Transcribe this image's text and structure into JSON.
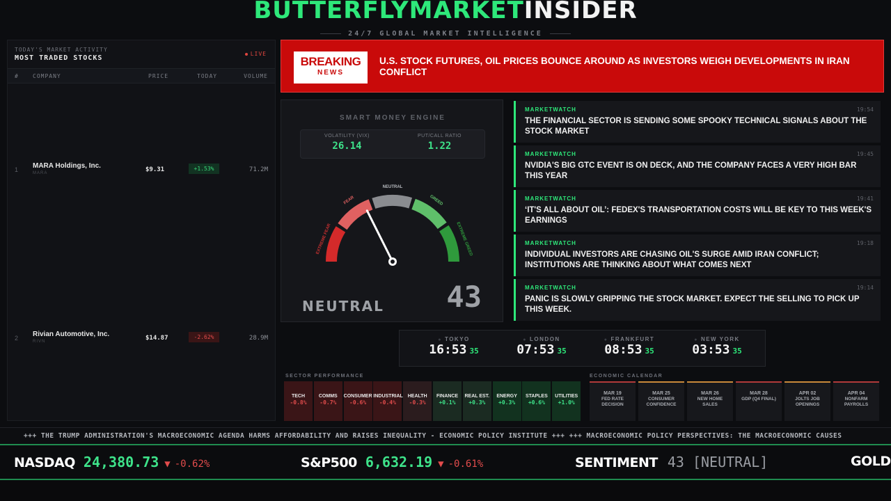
{
  "brand": {
    "part1": "BUTTERFLYMARKET",
    "part2": "INSIDER",
    "tagline": "24/7 GLOBAL MARKET INTELLIGENCE"
  },
  "stocks_panel": {
    "subtitle": "TODAY'S MARKET ACTIVITY",
    "title": "MOST TRADED STOCKS",
    "live": "LIVE",
    "columns": {
      "idx": "#",
      "company": "COMPANY",
      "price": "PRICE",
      "today": "TODAY",
      "volume": "VOLUME"
    },
    "rows": [
      {
        "idx": "1",
        "name": "MARA Holdings, Inc.",
        "ticker": "MARA",
        "price": "$9.31",
        "change": "+1.53%",
        "direction": "up",
        "volume": "71.2M"
      },
      {
        "idx": "2",
        "name": "Rivian Automotive, Inc.",
        "ticker": "RIVN",
        "price": "$14.87",
        "change": "-2.62%",
        "direction": "down",
        "volume": "28.9M"
      }
    ]
  },
  "breaking": {
    "badge_line1": "BREAKING",
    "badge_line2": "NEWS",
    "headline": "U.S. STOCK FUTURES, OIL PRICES BOUNCE AROUND AS INVESTORS WEIGH DEVELOPMENTS IN IRAN CONFLICT"
  },
  "engine": {
    "title": "SMART MONEY ENGINE",
    "vix_label": "VOLATILITY (VIX)",
    "vix_value": "26.14",
    "pcr_label": "PUT/CALL RATIO",
    "pcr_value": "1.22",
    "gauge_labels": {
      "extreme_fear": "EXTREME FEAR",
      "fear": "FEAR",
      "neutral": "NEUTRAL",
      "greed": "GREED",
      "extreme_greed": "EXTREME GREED"
    },
    "state": "NEUTRAL",
    "score": "43",
    "score_value": 43,
    "colors": {
      "extreme_fear": "#d42a2a",
      "fear": "#e06161",
      "neutral": "#8a8c90",
      "greed": "#5fbf6a",
      "extreme_greed": "#2f9a3c"
    }
  },
  "news": [
    {
      "source": "MARKETWATCH",
      "time": "19:54",
      "headline": "THE FINANCIAL SECTOR IS SENDING SOME SPOOKY TECHNICAL SIGNALS ABOUT THE STOCK MARKET"
    },
    {
      "source": "MARKETWATCH",
      "time": "19:45",
      "headline": "NVIDIA'S BIG GTC EVENT IS ON DECK, AND THE COMPANY FACES A VERY HIGH BAR THIS YEAR"
    },
    {
      "source": "MARKETWATCH",
      "time": "19:41",
      "headline": "‘IT'S ALL ABOUT OIL’: FEDEX'S TRANSPORTATION COSTS WILL BE KEY TO THIS WEEK'S EARNINGS"
    },
    {
      "source": "MARKETWATCH",
      "time": "19:18",
      "headline": "INDIVIDUAL INVESTORS ARE CHASING OIL'S SURGE AMID IRAN CONFLICT; INSTITUTIONS ARE THINKING ABOUT WHAT COMES NEXT"
    },
    {
      "source": "MARKETWATCH",
      "time": "19:14",
      "headline": "PANIC IS SLOWLY GRIPPING THE STOCK MARKET. EXPECT THE SELLING TO PICK UP THIS WEEK."
    }
  ],
  "clocks": [
    {
      "city": "TOKYO",
      "time": "16:53",
      "sec": "35"
    },
    {
      "city": "LONDON",
      "time": "07:53",
      "sec": "35"
    },
    {
      "city": "FRANKFURT",
      "time": "08:53",
      "sec": "35"
    },
    {
      "city": "NEW YORK",
      "time": "03:53",
      "sec": "35"
    }
  ],
  "sectors": {
    "title": "SECTOR PERFORMANCE",
    "items": [
      {
        "name": "TECH",
        "value": "-0.8%",
        "direction": "down"
      },
      {
        "name": "COMMS",
        "value": "-0.7%",
        "direction": "down"
      },
      {
        "name": "CONSUMER",
        "value": "-0.6%",
        "direction": "down"
      },
      {
        "name": "INDUSTRIAL",
        "value": "-0.4%",
        "direction": "down"
      },
      {
        "name": "HEALTH",
        "value": "-0.3%",
        "direction": "down"
      },
      {
        "name": "FINANCE",
        "value": "+0.1%",
        "direction": "up"
      },
      {
        "name": "REAL EST.",
        "value": "+0.3%",
        "direction": "up"
      },
      {
        "name": "ENERGY",
        "value": "+0.3%",
        "direction": "up"
      },
      {
        "name": "STAPLES",
        "value": "+0.6%",
        "direction": "up"
      },
      {
        "name": "UTILITIES",
        "value": "+1.0%",
        "direction": "up"
      }
    ]
  },
  "calendar": {
    "title": "ECONOMIC CALENDAR",
    "items": [
      {
        "date": "MAR 19",
        "line1": "FED RATE",
        "line2": "DECISION",
        "accent": "#b23a3a"
      },
      {
        "date": "MAR 25",
        "line1": "CONSUMER",
        "line2": "CONFIDENCE",
        "accent": "#c98a3a"
      },
      {
        "date": "MAR 26",
        "line1": "NEW HOME",
        "line2": "SALES",
        "accent": "#c98a3a"
      },
      {
        "date": "MAR 28",
        "line1": "GDP (Q4 FINAL)",
        "line2": "",
        "accent": "#b23a3a"
      },
      {
        "date": "APR 02",
        "line1": "JOLTS JOB",
        "line2": "OPENINGS",
        "accent": "#c98a3a"
      },
      {
        "date": "APR 04",
        "line1": "NONFARM",
        "line2": "PAYROLLS",
        "accent": "#b23a3a"
      }
    ]
  },
  "news_ticker": "+++ THE TRUMP ADMINISTRATION'S MACROECONOMIC AGENDA HARMS AFFORDABILITY AND RAISES INEQUALITY - ECONOMIC POLICY INSTITUTE +++ +++ MACROECONOMIC POLICY PERSPECTIVES: THE MACROECONOMIC CAUSES",
  "market_ticker": {
    "nasdaq": {
      "name": "NASDAQ",
      "value": "24,380.73",
      "arrow": "▼",
      "change": "-0.62%"
    },
    "sp500": {
      "name": "S&P500",
      "value": "6,632.19",
      "arrow": "▼",
      "change": "-0.61%"
    },
    "sentiment": {
      "name": "SENTIMENT",
      "value": "43 [NEUTRAL]"
    },
    "gold": {
      "name": "GOLD"
    }
  }
}
